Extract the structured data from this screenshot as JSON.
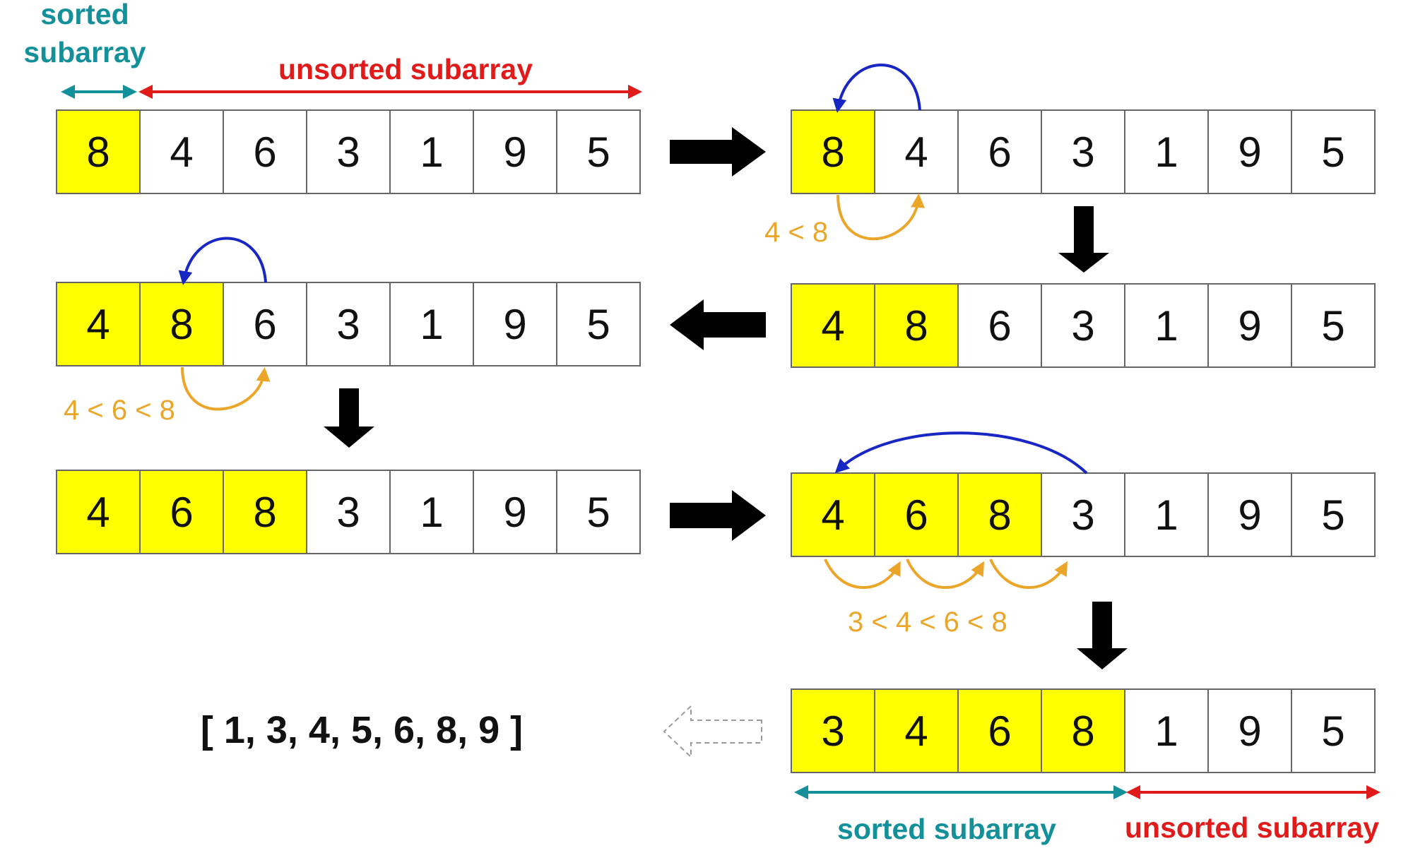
{
  "colors": {
    "sorted_fill": "#ffff00",
    "unsorted_fill": "#ffffff",
    "cell_border": "#666666",
    "teal": "#14909b",
    "red": "#e11a1a",
    "blue": "#1826c4",
    "orange": "#eba62a",
    "black": "#000000",
    "dashed": "#9a9a9a"
  },
  "labels": {
    "sorted_top": [
      "sorted",
      "subarray"
    ],
    "unsorted_top": "unsorted subarray",
    "sorted_bottom": "sorted subarray",
    "unsorted_bottom": "unsorted subarray"
  },
  "comparisons": {
    "step1": "4 < 8",
    "step2": "4 < 6 < 8",
    "step3": "3 < 4 < 6 < 8"
  },
  "result": "[ 1, 3, 4, 5, 6, 8, 9 ]",
  "arrays": [
    {
      "id": "a1",
      "values": [
        "8",
        "4",
        "6",
        "3",
        "1",
        "9",
        "5"
      ],
      "sorted_count": 1
    },
    {
      "id": "a2",
      "values": [
        "8",
        "4",
        "6",
        "3",
        "1",
        "9",
        "5"
      ],
      "sorted_count": 1
    },
    {
      "id": "a3",
      "values": [
        "4",
        "8",
        "6",
        "3",
        "1",
        "9",
        "5"
      ],
      "sorted_count": 2
    },
    {
      "id": "a4",
      "values": [
        "4",
        "8",
        "6",
        "3",
        "1",
        "9",
        "5"
      ],
      "sorted_count": 2
    },
    {
      "id": "a5",
      "values": [
        "4",
        "6",
        "8",
        "3",
        "1",
        "9",
        "5"
      ],
      "sorted_count": 3
    },
    {
      "id": "a6",
      "values": [
        "4",
        "6",
        "8",
        "3",
        "1",
        "9",
        "5"
      ],
      "sorted_count": 3
    },
    {
      "id": "a7",
      "values": [
        "3",
        "4",
        "6",
        "8",
        "1",
        "9",
        "5"
      ],
      "sorted_count": 4
    }
  ]
}
